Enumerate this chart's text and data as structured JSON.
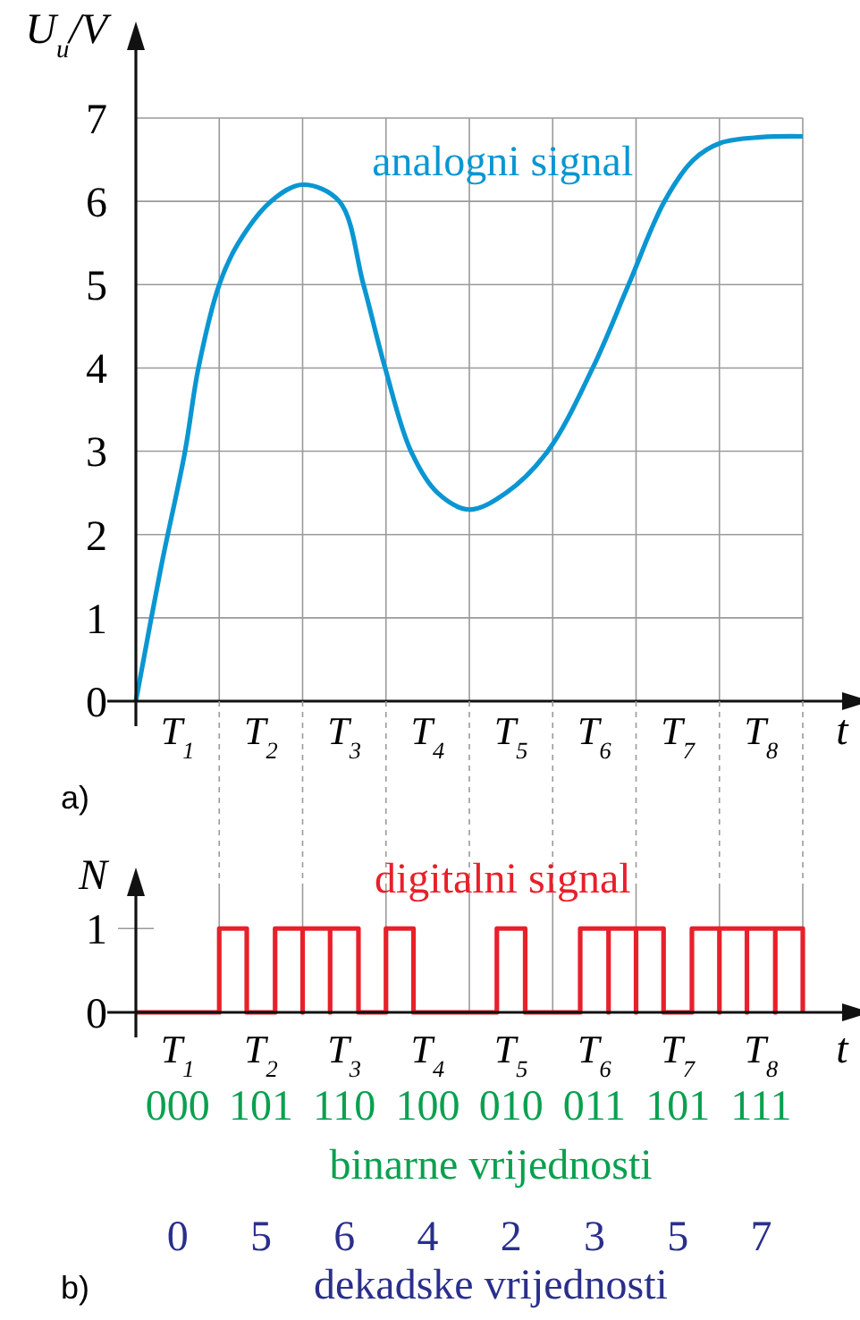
{
  "chart_data": [
    {
      "type": "line",
      "title": "a)",
      "xlabel": "t",
      "ylabel": "U$_{u}$/V",
      "xlim": [
        0,
        8
      ],
      "ylim": [
        0,
        7
      ],
      "yticks": [
        0,
        1,
        2,
        3,
        4,
        5,
        6,
        7
      ],
      "xticks": [
        {
          "value": 0.5,
          "label": "T$_{1}$"
        },
        {
          "value": 1,
          "label": null
        },
        {
          "value": 1.5,
          "label": "T$_{2}$"
        },
        {
          "value": 2,
          "label": null
        },
        {
          "value": 2.5,
          "label": "T$_{3}$"
        },
        {
          "value": 3,
          "label": null
        },
        {
          "value": 3.5,
          "label": "T$_{4}$"
        },
        {
          "value": 4,
          "label": null
        },
        {
          "value": 4.5,
          "label": "T$_{5}$"
        },
        {
          "value": 5,
          "label": null
        },
        {
          "value": 5.5,
          "label": "T$_{6}$"
        },
        {
          "value": 6,
          "label": null
        },
        {
          "value": 6.5,
          "label": "T$_{7}$"
        },
        {
          "value": 7,
          "label": null
        },
        {
          "value": 7.5,
          "label": "T$_{8}$"
        },
        {
          "value": 8,
          "label": null
        }
      ],
      "grid": true,
      "legend": false,
      "marker": "none",
      "line_style": "solid",
      "series": [
        {
          "name": "analogni signal",
          "color": "#0a96d2",
          "x": [
            0,
            0.3,
            0.59,
            0.75,
            1.0,
            1.23,
            1.62,
            2.0,
            2.44,
            2.73,
            2.99,
            3.3,
            3.62,
            4.0,
            4.44,
            4.94,
            5.48,
            5.91,
            6.34,
            6.69,
            7.01,
            7.5,
            8
          ],
          "values": [
            0,
            1.6,
            3,
            4,
            5,
            5.5,
            6,
            6.2,
            6,
            5,
            4,
            3,
            2.5,
            2.3,
            2.5,
            3,
            4,
            5,
            6,
            6.5,
            6.7,
            6.77,
            6.78
          ]
        }
      ]
    },
    {
      "type": "step",
      "title": "b)",
      "xlabel": "t",
      "ylabel": "N",
      "xlim": [
        0,
        8
      ],
      "ylim": [
        0,
        1.6
      ],
      "yticks": [
        0,
        1
      ],
      "xticks": [
        {
          "value": 0.5,
          "label": "T$_{1}$"
        },
        {
          "value": 1,
          "label": null
        },
        {
          "value": 1.5,
          "label": "T$_{2}$"
        },
        {
          "value": 2,
          "label": null
        },
        {
          "value": 2.5,
          "label": "T$_{3}$"
        },
        {
          "value": 3,
          "label": null
        },
        {
          "value": 3.5,
          "label": "T$_{4}$"
        },
        {
          "value": 4,
          "label": null
        },
        {
          "value": 4.5,
          "label": "T$_{5}$"
        },
        {
          "value": 5,
          "label": null
        },
        {
          "value": 5.5,
          "label": "T$_{6}$"
        },
        {
          "value": 6,
          "label": null
        },
        {
          "value": 6.5,
          "label": "T$_{7}$"
        },
        {
          "value": 7,
          "label": null
        },
        {
          "value": 7.5,
          "label": "T$_{8}$"
        },
        {
          "value": 8,
          "label": null
        }
      ],
      "grid": "x",
      "legend": false,
      "marker": "none",
      "line_style": "solid",
      "series": [
        {
          "name": "digitalni signal",
          "color": "#e8202a",
          "x": [
            0,
            0.33,
            0.67,
            1,
            1.33,
            1.67,
            2,
            2,
            2.33,
            2.33,
            2.67,
            3,
            3.33,
            3.67,
            4,
            4.33,
            4.67,
            5,
            5.33,
            5.67,
            5.67,
            6,
            6,
            6.33,
            6.67,
            7,
            7,
            7.33,
            7.33,
            7.67,
            7.67,
            8
          ],
          "values": [
            0,
            0,
            0,
            1,
            0,
            1,
            0,
            1,
            0,
            1,
            0,
            1,
            0,
            0,
            0,
            1,
            0,
            0,
            1,
            0,
            1,
            0,
            1,
            0,
            1,
            0,
            1,
            0,
            1,
            0,
            1,
            0
          ]
        }
      ],
      "annotations": [
        "000 101 110 100 010 011 101 111",
        "binarne vrijednosti",
        "0 5 6 4 2 3 5 7",
        "dekadske vrijednosti"
      ]
    }
  ]
}
